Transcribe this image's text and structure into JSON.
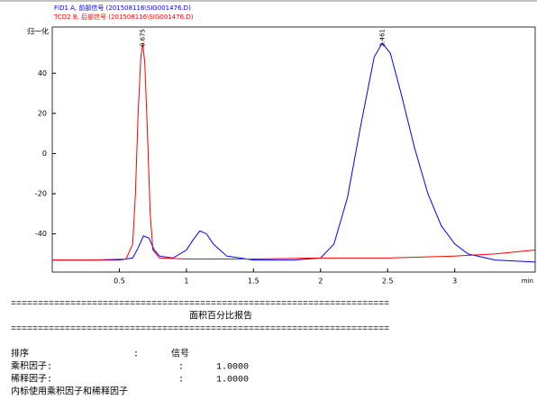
{
  "chart_data": {
    "type": "line",
    "series": [
      {
        "name": "FID1 A, 前部信号 (201508116\\SIG001476.D)",
        "color": "#0000ff",
        "x": [
          0,
          0.3,
          0.5,
          0.6,
          0.64,
          0.68,
          0.72,
          0.76,
          0.8,
          0.9,
          1.0,
          1.05,
          1.1,
          1.15,
          1.2,
          1.3,
          1.5,
          1.8,
          2.0,
          2.1,
          2.2,
          2.3,
          2.4,
          2.46,
          2.52,
          2.6,
          2.7,
          2.8,
          2.9,
          3.0,
          3.1,
          3.3,
          3.6
        ],
        "values": [
          -53,
          -53,
          -53,
          -52,
          -47,
          -41,
          -42,
          -48,
          -51,
          -52,
          -48,
          -43,
          -38.5,
          -40,
          -45,
          -51,
          -53,
          -53,
          -52,
          -45,
          -22,
          14,
          48,
          55,
          50,
          30,
          3,
          -20,
          -36,
          -45,
          -50,
          -53,
          -54
        ]
      },
      {
        "name": "TCD2 B, 后部信号 (201508116\\SIG001476.D)",
        "color": "#ff0000",
        "x": [
          0,
          0.3,
          0.55,
          0.6,
          0.62,
          0.64,
          0.66,
          0.675,
          0.69,
          0.71,
          0.73,
          0.75,
          0.8,
          1.0,
          1.5,
          2.0,
          2.5,
          3.0,
          3.3,
          3.6
        ],
        "values": [
          -53,
          -53,
          -52.5,
          -45,
          -20,
          20,
          48,
          55,
          45,
          10,
          -30,
          -48,
          -52,
          -52.5,
          -52.5,
          -52,
          -52,
          -51,
          -50,
          -48
        ]
      }
    ],
    "annotations": [
      {
        "x": 0.675,
        "text": "0.675",
        "color": "#ff0000"
      },
      {
        "x": 2.461,
        "text": "2.461",
        "color": "#0000ff"
      }
    ],
    "y_label": "归一化",
    "x_label": "min",
    "xlim": [
      0,
      3.6
    ],
    "xticks": [
      0.5,
      1,
      1.5,
      2,
      2.5,
      3
    ],
    "ylim": [
      -59,
      63
    ],
    "yticks": [
      -40,
      -20,
      0,
      20,
      40
    ]
  },
  "report": {
    "separator": "======================================================================",
    "title": "面积百分比报告",
    "rows": [
      [
        "排序",
        ":",
        "信号"
      ],
      [
        "乘积因子:",
        ":",
        "1.0000"
      ],
      [
        "稀释因子:",
        ":",
        "1.0000"
      ]
    ],
    "note": "内标使用乘积因子和稀释因子"
  }
}
